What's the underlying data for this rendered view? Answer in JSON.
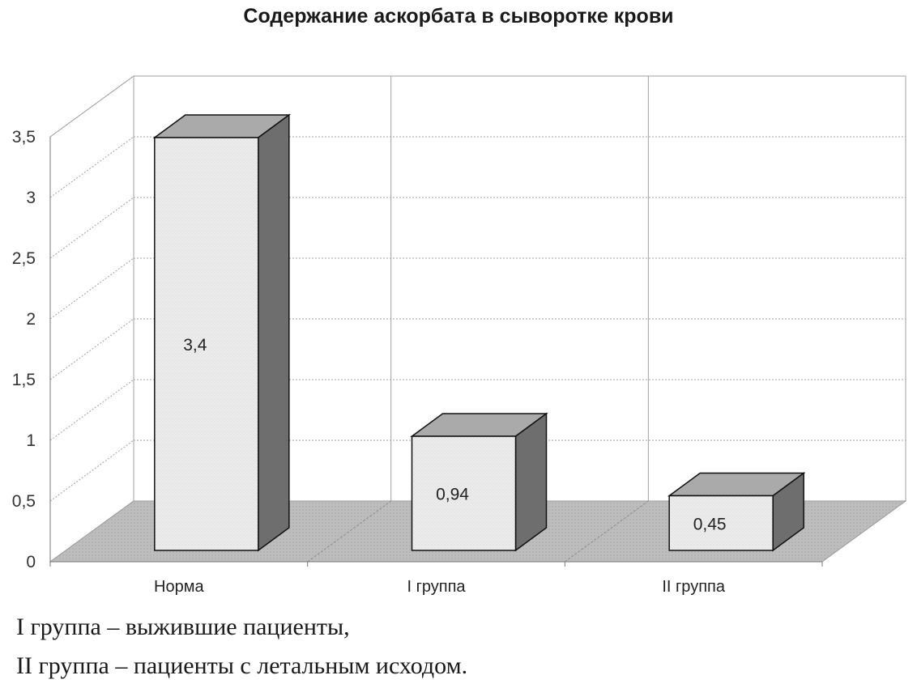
{
  "chart_data": {
    "type": "bar",
    "title": "Содержание аскорбата в сыворотке крови",
    "categories": [
      "Норма",
      "I группа",
      "II группа"
    ],
    "values": [
      3.4,
      0.94,
      0.45
    ],
    "data_labels": [
      "3,4",
      "0,94",
      "0,45"
    ],
    "y_ticks": [
      "0",
      "0,5",
      "1",
      "1,5",
      "2",
      "2,5",
      "3",
      "3,5"
    ],
    "ylim": [
      0,
      3.5
    ],
    "xlabel": "",
    "ylabel": "",
    "grid": true,
    "style": "3d-column"
  },
  "footnotes": [
    "I группа – выжившие пациенты,",
    "II группа – пациенты с летальным исходом."
  ],
  "colors": {
    "bar_front": "#e9e9e9",
    "bar_top": "#aaaaaa",
    "bar_side": "#6e6e6e",
    "floor": "#bdbdbd",
    "grid": "#a0a0a0"
  }
}
